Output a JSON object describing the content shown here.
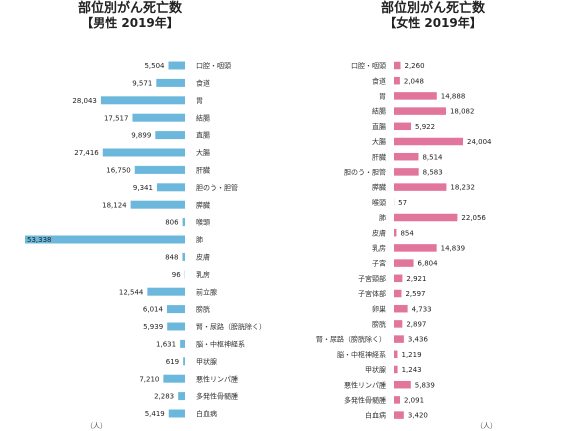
{
  "colors": {
    "male_bar": "#6cb8dc",
    "female_bar": "#e1759b"
  },
  "chart_data": [
    {
      "type": "bar",
      "orientation": "horizontal",
      "title": "部位別がん死亡数",
      "subtitle": "【男性 2019年】",
      "unit_label": "（人）",
      "categories": [
        "口腔・咽頭",
        "食道",
        "胃",
        "結腸",
        "直腸",
        "大腸",
        "肝臓",
        "胆のう・胆管",
        "膵臓",
        "喉頭",
        "肺",
        "皮膚",
        "乳房",
        "前立腺",
        "膀胱",
        "腎・尿路（膀胱除く）",
        "脳・中枢神経系",
        "甲状腺",
        "悪性リンパ腫",
        "多発性骨髄腫",
        "白血病"
      ],
      "values": [
        5504,
        9571,
        28043,
        17517,
        9899,
        27416,
        16750,
        9341,
        18124,
        806,
        53338,
        848,
        96,
        12544,
        6014,
        5939,
        1631,
        619,
        7210,
        2283,
        5419
      ],
      "value_labels": [
        "5,504",
        "9,571",
        "28,043",
        "17,517",
        "9,899",
        "27,416",
        "16,750",
        "9,341",
        "18,124",
        "806",
        "53,338",
        "848",
        "96",
        "12,544",
        "6,014",
        "5,939",
        "1,631",
        "619",
        "7,210",
        "2,283",
        "5,419"
      ]
    },
    {
      "type": "bar",
      "orientation": "horizontal",
      "title": "部位別がん死亡数",
      "subtitle": "【女性 2019年】",
      "unit_label": "（人）",
      "categories": [
        "口腔・咽頭",
        "食道",
        "胃",
        "結腸",
        "直腸",
        "大腸",
        "肝臓",
        "胆のう・胆管",
        "膵臓",
        "喉頭",
        "肺",
        "皮膚",
        "乳房",
        "子宮",
        "子宮頸部",
        "子宮体部",
        "卵巣",
        "膀胱",
        "腎・尿路（膀胱除く）",
        "脳・中枢神経系",
        "甲状腺",
        "悪性リンパ腫",
        "多発性骨髄腫",
        "白血病"
      ],
      "values": [
        2260,
        2048,
        14888,
        18082,
        5922,
        24004,
        8514,
        8583,
        18232,
        57,
        22056,
        854,
        14839,
        6804,
        2921,
        2597,
        4733,
        2897,
        3436,
        1219,
        1243,
        5839,
        2091,
        3420
      ],
      "value_labels": [
        "2,260",
        "2,048",
        "14,888",
        "18,082",
        "5,922",
        "24,004",
        "8,514",
        "8,583",
        "18,232",
        "57",
        "22,056",
        "854",
        "14,839",
        "6,804",
        "2,921",
        "2,597",
        "4,733",
        "2,897",
        "3,436",
        "1,219",
        "1,243",
        "5,839",
        "2,091",
        "3,420"
      ]
    }
  ]
}
